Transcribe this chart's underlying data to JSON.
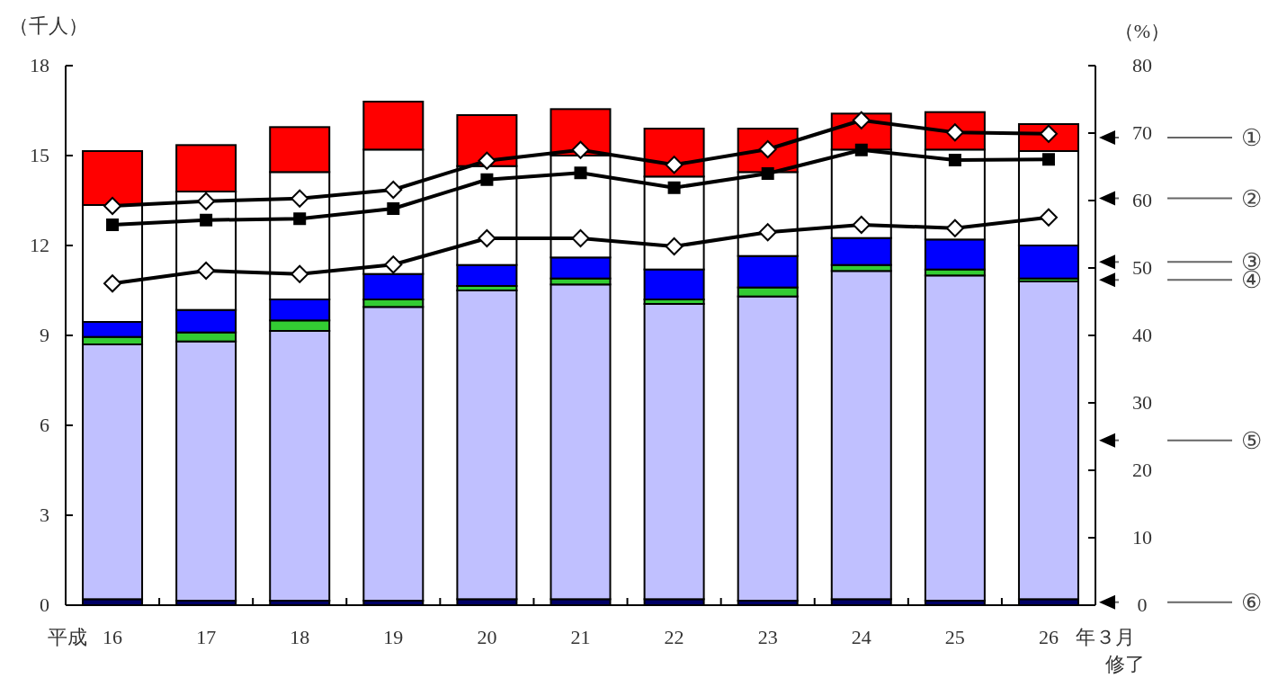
{
  "chart_data": {
    "type": "bar",
    "stacked": true,
    "ylabel": "（千人）",
    "y2label": "（%）",
    "categories": [
      "16",
      "17",
      "18",
      "19",
      "20",
      "21",
      "22",
      "23",
      "24",
      "25",
      "26"
    ],
    "ylim": [
      0,
      18
    ],
    "yticks": [
      0,
      3,
      6,
      9,
      12,
      15,
      18
    ],
    "y2lim": [
      0,
      80
    ],
    "y2ticks": [
      0,
      10,
      20,
      30,
      40,
      50,
      60,
      70,
      80
    ],
    "series": [
      {
        "name": "⑥",
        "color": "#000066",
        "values": [
          0.2,
          0.15,
          0.15,
          0.15,
          0.2,
          0.2,
          0.2,
          0.15,
          0.2,
          0.15,
          0.2
        ]
      },
      {
        "name": "⑤",
        "color": "#c0c0ff",
        "values": [
          8.5,
          8.65,
          9.0,
          9.8,
          10.3,
          10.5,
          9.85,
          10.15,
          10.95,
          10.85,
          10.6
        ]
      },
      {
        "name": "④",
        "color": "#33cc33",
        "values": [
          0.25,
          0.3,
          0.35,
          0.25,
          0.15,
          0.2,
          0.15,
          0.3,
          0.2,
          0.2,
          0.1
        ]
      },
      {
        "name": "③",
        "color": "#0000ff",
        "values": [
          0.5,
          0.75,
          0.7,
          0.85,
          0.7,
          0.7,
          1.0,
          1.05,
          0.9,
          1.0,
          1.1
        ]
      },
      {
        "name": "②",
        "color": "#ffffff",
        "values": [
          3.9,
          3.95,
          4.25,
          4.15,
          3.3,
          3.4,
          3.1,
          2.8,
          2.95,
          3.0,
          3.15
        ]
      },
      {
        "name": "①",
        "color": "#ff0000",
        "values": [
          1.8,
          1.55,
          1.5,
          1.6,
          1.7,
          1.55,
          1.6,
          1.45,
          1.2,
          1.25,
          0.9
        ]
      },
      {
        "type": "line",
        "axis": "y2",
        "color": "#000000",
        "marker": "diamond",
        "values": [
          59.2,
          59.9,
          60.3,
          61.6,
          65.9,
          67.5,
          65.3,
          67.6,
          71.9,
          70.1,
          69.9
        ]
      },
      {
        "type": "line",
        "axis": "y2",
        "color": "#000000",
        "marker": "square",
        "values": [
          56.4,
          57.1,
          57.3,
          58.8,
          63.1,
          64.1,
          61.9,
          64.0,
          67.5,
          66.0,
          66.1
        ]
      },
      {
        "type": "line",
        "axis": "y2",
        "color": "#000000",
        "marker": "diamond",
        "values": [
          47.7,
          49.6,
          49.1,
          50.5,
          54.4,
          54.4,
          53.2,
          55.3,
          56.4,
          55.9,
          57.5
        ]
      }
    ],
    "annotations": [
      "平成",
      "年３月修了"
    ]
  }
}
